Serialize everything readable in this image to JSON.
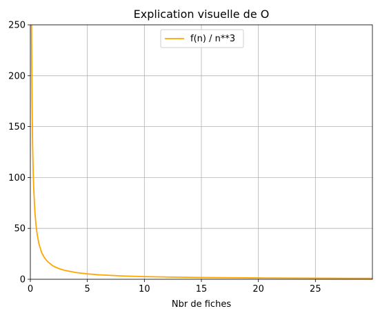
{
  "chart_data": {
    "type": "line",
    "title": "Explication visuelle de O",
    "xlabel": "Nbr de fiches",
    "ylabel": "",
    "xlim": [
      0,
      30
    ],
    "ylim": [
      0,
      250
    ],
    "x_ticks": [
      0,
      5,
      10,
      15,
      20,
      25
    ],
    "y_ticks": [
      0,
      50,
      100,
      150,
      200,
      250
    ],
    "x_tick_labels": [
      "0",
      "5",
      "10",
      "15",
      "20",
      "25"
    ],
    "y_tick_labels": [
      "0",
      "50",
      "100",
      "150",
      "200",
      "250"
    ],
    "grid": true,
    "legend_position": "upper center",
    "series": [
      {
        "name": "f(n) / n**3",
        "color": "#ffa500",
        "x": [
          0.1,
          0.12,
          0.15,
          0.2,
          0.25,
          0.3,
          0.4,
          0.5,
          0.6,
          0.75,
          1.0,
          1.25,
          1.5,
          2.0,
          2.5,
          3.0,
          4.0,
          5.0,
          6.0,
          8.0,
          10.0,
          12.0,
          15.0,
          20.0,
          25.0,
          30.0
        ],
        "y": [
          263,
          219,
          175,
          132,
          105,
          88,
          66,
          53,
          44,
          35,
          26,
          21,
          17.5,
          13,
          10.5,
          8.8,
          6.6,
          5.3,
          4.4,
          3.3,
          2.6,
          2.2,
          1.75,
          1.3,
          1.05,
          0.88
        ]
      }
    ]
  }
}
